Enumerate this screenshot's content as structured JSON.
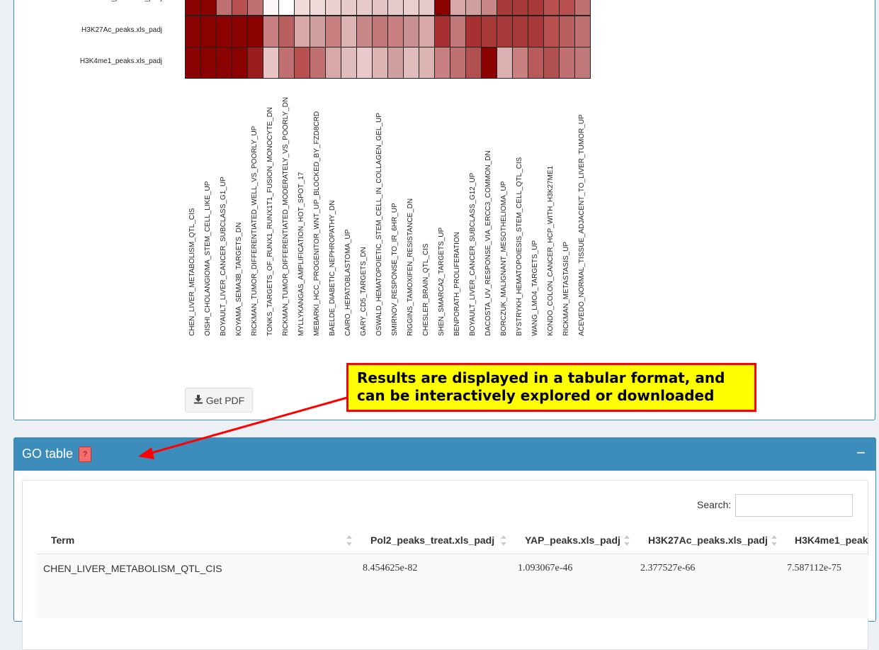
{
  "heatmap": {
    "rows": [
      "YAP_peaks.xls_padj",
      "H3K27Ac_peaks.xls_padj",
      "H3K4me1_peaks.xls_padj"
    ],
    "columns": [
      "CHEN_LIVER_METABOLISM_QTL_CIS",
      "OISHI_CHOLANGIOMA_STEM_CELL_LIKE_UP",
      "BOYAULT_LIVER_CANCER_SUBCLASS_G1_UP",
      "KOYAMA_SEMA3B_TARGETS_DN",
      "RICKMAN_TUMOR_DIFFERENTIATED_WELL_VS_POORLY_UP",
      "TONKS_TARGETS_OF_RUNX1_RUNX1T1_FUSION_MONOCYTE_DN",
      "RICKMAN_TUMOR_DIFFERENTIATED_MODERATELY_VS_POORLY_DN",
      "MYLLYKANGAS_AMPLIFICATION_HOT_SPOT_17",
      "MEBARKI_HCC_PROGENITOR_WNT_UP_BLOCKED_BY_FZD8CRD",
      "BAELDE_DIABETIC_NEPHROPATHY_DN",
      "CAIRO_HEPATOBLASTOMA_UP",
      "GARY_CD5_TARGETS_DN",
      "OSWALD_HEMATOPOIETIC_STEM_CELL_IN_COLLAGEN_GEL_UP",
      "SMIRNOV_RESPONSE_TO_IR_6HR_UP",
      "RIGGINS_TAMOXIFEN_RESISTANCE_DN",
      "CHESLER_BRAIN_QTL_CIS",
      "SHEN_SMARCA2_TARGETS_UP",
      "BENPORATH_PROLIFERATION",
      "BOYAULT_LIVER_CANCER_SUBCLASS_G12_UP",
      "DACOSTA_UV_RESPONSE_VIA_ERCC3_COMMON_DN",
      "BORCZUK_MALIGNANT_MESOTHELIOMA_UP",
      "BYSTRYKH_HEMATOPOIESIS_STEM_CELL_QTL_CIS",
      "WANG_LMO4_TARGETS_UP",
      "KONDO_COLON_CANCER_HCP_WITH_H3K27ME1",
      "RICKMAN_METASTASIS_UP",
      "ACEVEDO_NORMAL_TISSUE_ADJACENT_TO_LIVER_TUMOR_UP"
    ],
    "colors": [
      [
        "#8b0000",
        "#8b0000",
        "#c07070",
        "#b85050",
        "#c07070",
        "#fdf7f7",
        "#ffffff",
        "#f0dada",
        "#f0dada",
        "#ecd0d0",
        "#e8cccc",
        "#e8cccc",
        "#e4c4c4",
        "#e8cccc",
        "#ecd0d0",
        "#e8cccc",
        "#8b0000",
        "#d8a8a8",
        "#d0a0a0",
        "#c88888",
        "#a83a3a",
        "#a83a3a",
        "#a83a3a",
        "#b85050",
        "#b85050",
        "#c07070"
      ],
      [
        "#8b0000",
        "#8b0000",
        "#8b0000",
        "#8b0000",
        "#8b0000",
        "#c88080",
        "#b86060",
        "#d8a8a8",
        "#d0a0a0",
        "#c88080",
        "#dcb4b4",
        "#c88888",
        "#c07878",
        "#c88080",
        "#c89090",
        "#d8a8a8",
        "#a83030",
        "#c07878",
        "#a83030",
        "#a83a3a",
        "#a83a3a",
        "#a83a3a",
        "#a83a3a",
        "#b85050",
        "#b86060",
        "#c07070"
      ],
      [
        "#8b0000",
        "#8b0000",
        "#8b0000",
        "#8b0000",
        "#9a1c1c",
        "#e8c4c4",
        "#c07070",
        "#b85050",
        "#c07070",
        "#d8a8a8",
        "#e0bcbc",
        "#e8c8c8",
        "#dcb4b4",
        "#d0a0a0",
        "#e0bcbc",
        "#dcb4b4",
        "#c88080",
        "#c07070",
        "#b05050",
        "#8b0000",
        "#dcb0b0",
        "#c88080",
        "#b85a5a",
        "#b05050",
        "#c07070",
        "#c07878"
      ]
    ]
  },
  "pdf_button": {
    "label": "Get PDF",
    "icon": "download-icon"
  },
  "callout": {
    "text": "Results are displayed in a tabular format, and can be interactively explored or downloaded"
  },
  "go_panel": {
    "title": "GO table",
    "help_label": "?",
    "collapse_label": "−",
    "search_label": "Search:",
    "search_value": "",
    "table": {
      "columns": [
        "Term",
        "Pol2_peaks_treat.xls_padj",
        "YAP_peaks.xls_padj",
        "H3K27Ac_peaks.xls_padj",
        "H3K4me1_peak"
      ],
      "rows": [
        [
          "CHEN_LIVER_METABOLISM_QTL_CIS",
          "8.454625e-82",
          "1.093067e-46",
          "2.377527e-66",
          "7.587112e-75"
        ]
      ]
    }
  },
  "theme": {
    "primary": "#3c8dbc",
    "callout_bg": "#ffff00",
    "callout_border": "#ff0000",
    "heat_dark": "#8b0000"
  }
}
